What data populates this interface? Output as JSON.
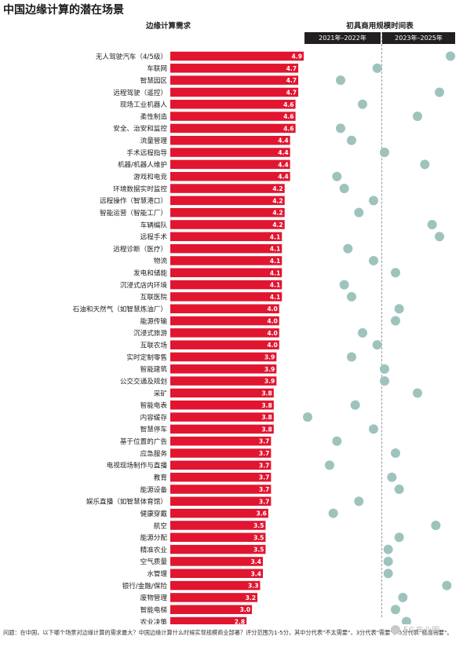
{
  "title": "中国边缘计算的潜在场景",
  "demand_header": "边缘计算需求",
  "timeline_header": "初具商用规模时间表",
  "periods": [
    "2021年–2022年",
    "2023年–2025年"
  ],
  "footnote": "问题：在中国，以下哪个场景对边缘计算的需求最大？中国边缘计算什么时候实现规模商业部署？评分范围为1-5分，其中分代表\"不太需要\"，3分代表\"需要\"，5分代表\"极度需要\"。",
  "watermark": "5G产业圈",
  "colors": {
    "bar": "#e1152f",
    "dot": "#9ec3bd",
    "header_bg": "#231f20"
  },
  "chart_data": {
    "type": "bar",
    "subtype": "horizontal bar with dot timeline",
    "x_axis_visible": false,
    "timeline_range": [
      "2021",
      "2025"
    ],
    "categories": [
      "无人驾驶汽车（4/5级）",
      "车联网",
      "智慧园区",
      "远程驾驶（遥控）",
      "现场工业机器人",
      "柔性制造",
      "安全、治安和监控",
      "流量管理",
      "手术远程指导",
      "机器/机器人维护",
      "游戏和电竞",
      "环境数据实时监控",
      "远程操作（智慧港口）",
      "智能运营（智能工厂）",
      "车辆编队",
      "远程手术",
      "远程诊断（医疗）",
      "物流",
      "发电和储能",
      "沉浸式店内环境",
      "互联医院",
      "石油和天然气（如智慧炼油厂）",
      "能源传输",
      "沉浸式旅游",
      "互联农场",
      "实时定制零售",
      "智能建筑",
      "公交交通及规划",
      "采矿",
      "智能电表",
      "内容缓存",
      "智慧停车",
      "基于位置的广告",
      "应急服务",
      "电视现场制作与直播",
      "教育",
      "能源设备",
      "娱乐直播（如智慧体育馆）",
      "健康穿戴",
      "航空",
      "能源分配",
      "精准农业",
      "空气质量",
      "水管理",
      "银行/金融/保险",
      "废物管理",
      "智能电梯",
      "农业决策"
    ],
    "values": [
      4.9,
      4.7,
      4.7,
      4.7,
      4.6,
      4.6,
      4.6,
      4.4,
      4.4,
      4.4,
      4.4,
      4.2,
      4.2,
      4.2,
      4.2,
      4.1,
      4.1,
      4.1,
      4.1,
      4.1,
      4.1,
      4.0,
      4.0,
      4.0,
      4.0,
      3.9,
      3.9,
      3.9,
      3.8,
      3.8,
      3.8,
      3.8,
      3.7,
      3.7,
      3.7,
      3.7,
      3.7,
      3.7,
      3.6,
      3.5,
      3.5,
      3.5,
      3.4,
      3.4,
      3.3,
      3.2,
      3.0,
      2.8
    ],
    "value_labels": [
      "4.9",
      "4.7",
      "4.7",
      "4.7",
      "4.6",
      "4.6",
      "4.6",
      "4.4",
      "4.4",
      "4.4",
      "4.4",
      "4.2",
      "4.2",
      "4.2",
      "4.2",
      "4.1",
      "4.1",
      "4.1",
      "4.1",
      "4.1",
      "4.1",
      "4.0",
      "4.0",
      "4.0",
      "4.0",
      "3.9",
      "3.9",
      "3.9",
      "3.8",
      "3.8",
      "3.8",
      "3.8",
      "3.7",
      "3.7",
      "3.7",
      "3.7",
      "3.7",
      "3.7",
      "3.6",
      "3.5",
      "3.5",
      "3.5",
      "3.4",
      "3.4",
      "3.3",
      "3.2",
      "3.0",
      "2.8"
    ],
    "timeline_years": [
      2024.9,
      2022.9,
      2021.9,
      2024.6,
      2022.5,
      2024.0,
      2021.9,
      2022.2,
      2023.1,
      2024.2,
      2021.8,
      2022.0,
      2022.8,
      2022.4,
      2024.4,
      2024.6,
      2022.1,
      2022.8,
      2023.4,
      2022.0,
      2022.2,
      2023.5,
      2023.4,
      2022.5,
      2022.9,
      2022.2,
      2023.1,
      2023.1,
      2024.0,
      2022.3,
      2021.0,
      2022.8,
      2021.8,
      2023.4,
      2021.6,
      2023.3,
      2023.5,
      2022.4,
      2021.7,
      2024.5,
      2023.5,
      2023.2,
      2023.2,
      2023.2,
      2024.8,
      2023.6,
      2023.4,
      2023.7
    ]
  }
}
